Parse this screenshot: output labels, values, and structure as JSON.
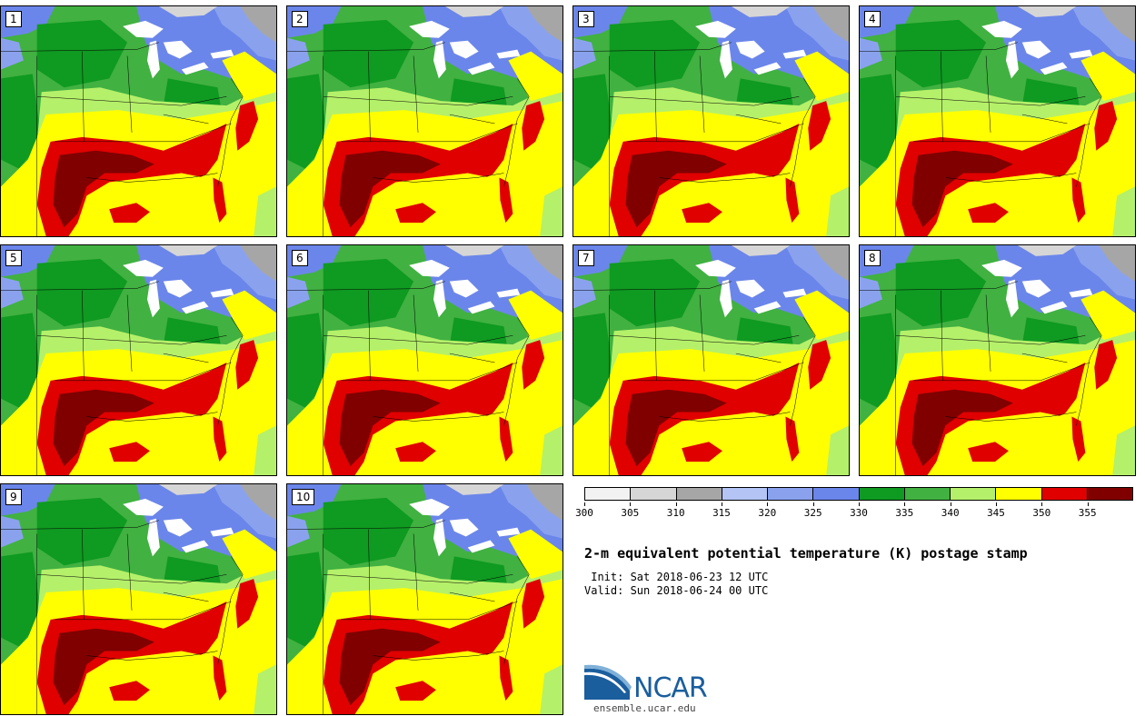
{
  "panels": [
    {
      "label": "1"
    },
    {
      "label": "2"
    },
    {
      "label": "3"
    },
    {
      "label": "4"
    },
    {
      "label": "5"
    },
    {
      "label": "6"
    },
    {
      "label": "7"
    },
    {
      "label": "8"
    },
    {
      "label": "9"
    },
    {
      "label": "10"
    }
  ],
  "colorbar": {
    "colors": [
      "#f2f2f2",
      "#d6d6d6",
      "#a6a6a6",
      "#b3c4f5",
      "#8aa2ee",
      "#6b86ea",
      "#0f9a21",
      "#41b141",
      "#b5f06a",
      "#ffff00",
      "#e00000",
      "#800000"
    ],
    "ticks": [
      "300",
      "305",
      "310",
      "315",
      "320",
      "325",
      "330",
      "335",
      "340",
      "345",
      "350",
      "355"
    ]
  },
  "title": "2-m equivalent potential temperature (K) postage stamp",
  "init": " Init: Sat 2018-06-23 12 UTC",
  "valid": "Valid: Sun 2018-06-24 00 UTC",
  "logo": {
    "text": "NCAR",
    "site": "ensemble.ucar.edu",
    "color": "#1a5e9e"
  }
}
